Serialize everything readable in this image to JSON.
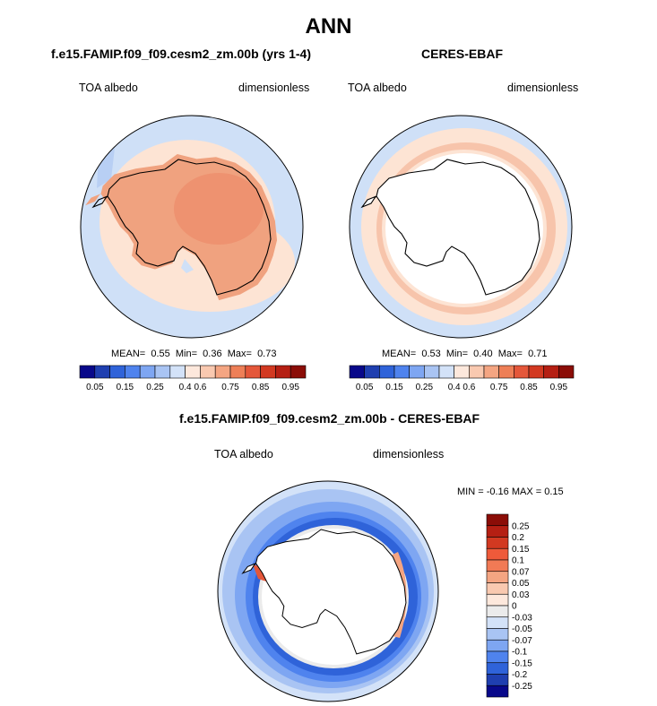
{
  "main_title": "ANN",
  "panels": {
    "model": {
      "title": "f.e15.FAMIP.f09_f09.cesm2_zm.00b (yrs 1-4)",
      "left_label": "TOA albedo",
      "right_label": "dimensionless",
      "stats": {
        "mean_label": "MEAN=",
        "mean": "0.55",
        "min_label": "Min=",
        "min": "0.36",
        "max_label": "Max=",
        "max": "0.73"
      }
    },
    "obs": {
      "title": "CERES-EBAF",
      "left_label": "TOA albedo",
      "right_label": "dimensionless",
      "stats": {
        "mean_label": "MEAN=",
        "mean": "0.53",
        "min_label": "Min=",
        "min": "0.40",
        "max_label": "Max=",
        "max": "0.71"
      }
    },
    "diff": {
      "title": "f.e15.FAMIP.f09_f09.cesm2_zm.00b - CERES-EBAF",
      "left_label": "TOA albedo",
      "right_label": "dimensionless",
      "minmax": "MIN = -0.16 MAX = 0.15"
    }
  },
  "chart_data": [
    {
      "type": "heatmap",
      "projection": "south-polar stereographic",
      "title": "f.e15.FAMIP.f09_f09.cesm2_zm.00b (yrs 1-4)",
      "variable": "TOA albedo",
      "units": "dimensionless",
      "mean": 0.55,
      "min": 0.36,
      "max": 0.73,
      "colorbar_levels": [
        0.05,
        0.1,
        0.15,
        0.2,
        0.25,
        0.3,
        0.35,
        0.4,
        0.5,
        0.6,
        0.65,
        0.7,
        0.75,
        0.8,
        0.85,
        0.9,
        0.95
      ],
      "colorbar_tick_labels": [
        "0.05",
        "0.15",
        "0.25",
        "0.4",
        "0.6",
        "0.75",
        "0.85",
        "0.95"
      ]
    },
    {
      "type": "heatmap",
      "projection": "south-polar stereographic",
      "title": "CERES-EBAF",
      "variable": "TOA albedo",
      "units": "dimensionless",
      "mean": 0.53,
      "min": 0.4,
      "max": 0.71,
      "colorbar_levels": [
        0.05,
        0.1,
        0.15,
        0.2,
        0.25,
        0.3,
        0.35,
        0.4,
        0.5,
        0.6,
        0.65,
        0.7,
        0.75,
        0.8,
        0.85,
        0.9,
        0.95
      ],
      "colorbar_tick_labels": [
        "0.05",
        "0.15",
        "0.25",
        "0.4",
        "0.6",
        "0.75",
        "0.85",
        "0.95"
      ]
    },
    {
      "type": "heatmap",
      "projection": "south-polar stereographic",
      "title": "f.e15.FAMIP.f09_f09.cesm2_zm.00b - CERES-EBAF",
      "variable": "TOA albedo",
      "units": "dimensionless",
      "min": -0.16,
      "max": 0.15,
      "colorbar_tick_labels": [
        "0.25",
        "0.2",
        "0.15",
        "0.1",
        "0.07",
        "0.05",
        "0.03",
        "0",
        "-0.03",
        "-0.05",
        "-0.07",
        "-0.1",
        "-0.15",
        "-0.2",
        "-0.25"
      ]
    }
  ],
  "colors": {
    "abs_scale": [
      "#08088a",
      "#1f3fb0",
      "#2f63d9",
      "#4f83ee",
      "#7ea6f2",
      "#a9c4f3",
      "#d3e2f8",
      "#fde8dc",
      "#f9c9b0",
      "#f4a582",
      "#ee7f57",
      "#e4573a",
      "#d23921",
      "#b51f13",
      "#8b0d07"
    ],
    "diff_scale": [
      "#8b0d07",
      "#b51f13",
      "#d23921",
      "#ee5a3a",
      "#f17a55",
      "#f4a582",
      "#f9c9b0",
      "#fde8dc",
      "#ebebeb",
      "#d3e2f8",
      "#a9c4f3",
      "#7ea6f2",
      "#4f83ee",
      "#2f63d9",
      "#1f3fb0",
      "#08088a"
    ],
    "ocean_light": "#cfe0f7",
    "ice_model": "#f0a27f",
    "ring_peach": "#fde4d4"
  }
}
